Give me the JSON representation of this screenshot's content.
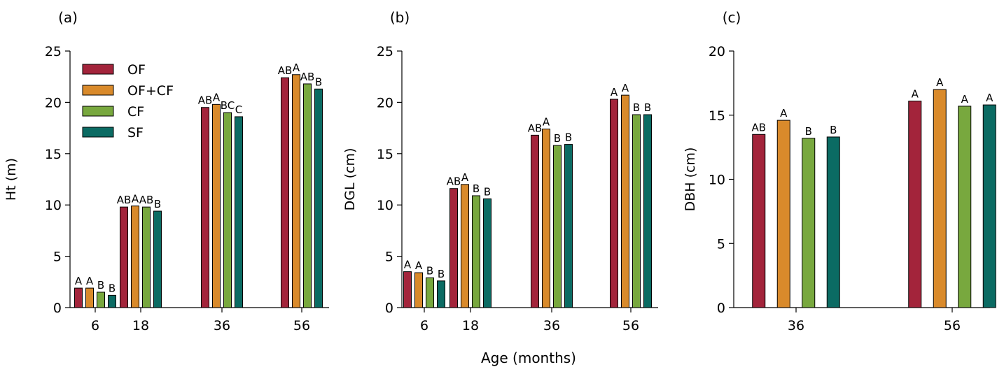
{
  "figure": {
    "shared_xlabel": "Age (months)"
  },
  "colors": {
    "OF": "#a3243b",
    "OF+CF": "#d98a2b",
    "CF": "#78a83e",
    "SF": "#0b6b63"
  },
  "chart_data": [
    {
      "type": "bar",
      "panel_label": "(a)",
      "title": "",
      "xlabel": "",
      "ylabel": "Ht (m)",
      "ylim": [
        0,
        25
      ],
      "yticks": [
        0,
        5,
        10,
        15,
        20,
        25
      ],
      "categories": [
        "6",
        "18",
        "36",
        "56"
      ],
      "legend": {
        "placement": "top-left",
        "entries": [
          "OF",
          "OF+CF",
          "CF",
          "SF"
        ]
      },
      "series": [
        {
          "name": "OF",
          "values": [
            1.9,
            9.8,
            19.5,
            22.4
          ],
          "labels": [
            "A",
            "AB",
            "AB",
            "AB"
          ]
        },
        {
          "name": "OF+CF",
          "values": [
            1.9,
            9.9,
            19.8,
            22.7
          ],
          "labels": [
            "A",
            "A",
            "A",
            "A"
          ]
        },
        {
          "name": "CF",
          "values": [
            1.5,
            9.8,
            19.0,
            21.8
          ],
          "labels": [
            "B",
            "AB",
            "BC",
            "AB"
          ]
        },
        {
          "name": "SF",
          "values": [
            1.2,
            9.4,
            18.6,
            21.3
          ],
          "labels": [
            "B",
            "B",
            "C",
            "B"
          ]
        }
      ]
    },
    {
      "type": "bar",
      "panel_label": "(b)",
      "title": "",
      "xlabel": "",
      "ylabel": "DGL (cm)",
      "ylim": [
        0,
        25
      ],
      "yticks": [
        0,
        5,
        10,
        15,
        20,
        25
      ],
      "categories": [
        "6",
        "18",
        "36",
        "56"
      ],
      "series": [
        {
          "name": "OF",
          "values": [
            3.5,
            11.6,
            16.8,
            20.3
          ],
          "labels": [
            "A",
            "AB",
            "AB",
            "A"
          ]
        },
        {
          "name": "OF+CF",
          "values": [
            3.4,
            12.0,
            17.4,
            20.7
          ],
          "labels": [
            "A",
            "A",
            "A",
            "A"
          ]
        },
        {
          "name": "CF",
          "values": [
            2.9,
            10.9,
            15.8,
            18.8
          ],
          "labels": [
            "B",
            "B",
            "B",
            "B"
          ]
        },
        {
          "name": "SF",
          "values": [
            2.6,
            10.6,
            15.9,
            18.8
          ],
          "labels": [
            "B",
            "B",
            "B",
            "B"
          ]
        }
      ]
    },
    {
      "type": "bar",
      "panel_label": "(c)",
      "title": "",
      "xlabel": "",
      "ylabel": "DBH (cm)",
      "ylim": [
        0,
        20
      ],
      "yticks": [
        0,
        5,
        10,
        15,
        20
      ],
      "categories": [
        "36",
        "56"
      ],
      "series": [
        {
          "name": "OF",
          "values": [
            13.5,
            16.1
          ],
          "labels": [
            "AB",
            "A"
          ]
        },
        {
          "name": "OF+CF",
          "values": [
            14.6,
            17.0
          ],
          "labels": [
            "A",
            "A"
          ]
        },
        {
          "name": "CF",
          "values": [
            13.2,
            15.7
          ],
          "labels": [
            "B",
            "A"
          ]
        },
        {
          "name": "SF",
          "values": [
            13.3,
            15.8
          ],
          "labels": [
            "B",
            "A"
          ]
        }
      ]
    }
  ]
}
